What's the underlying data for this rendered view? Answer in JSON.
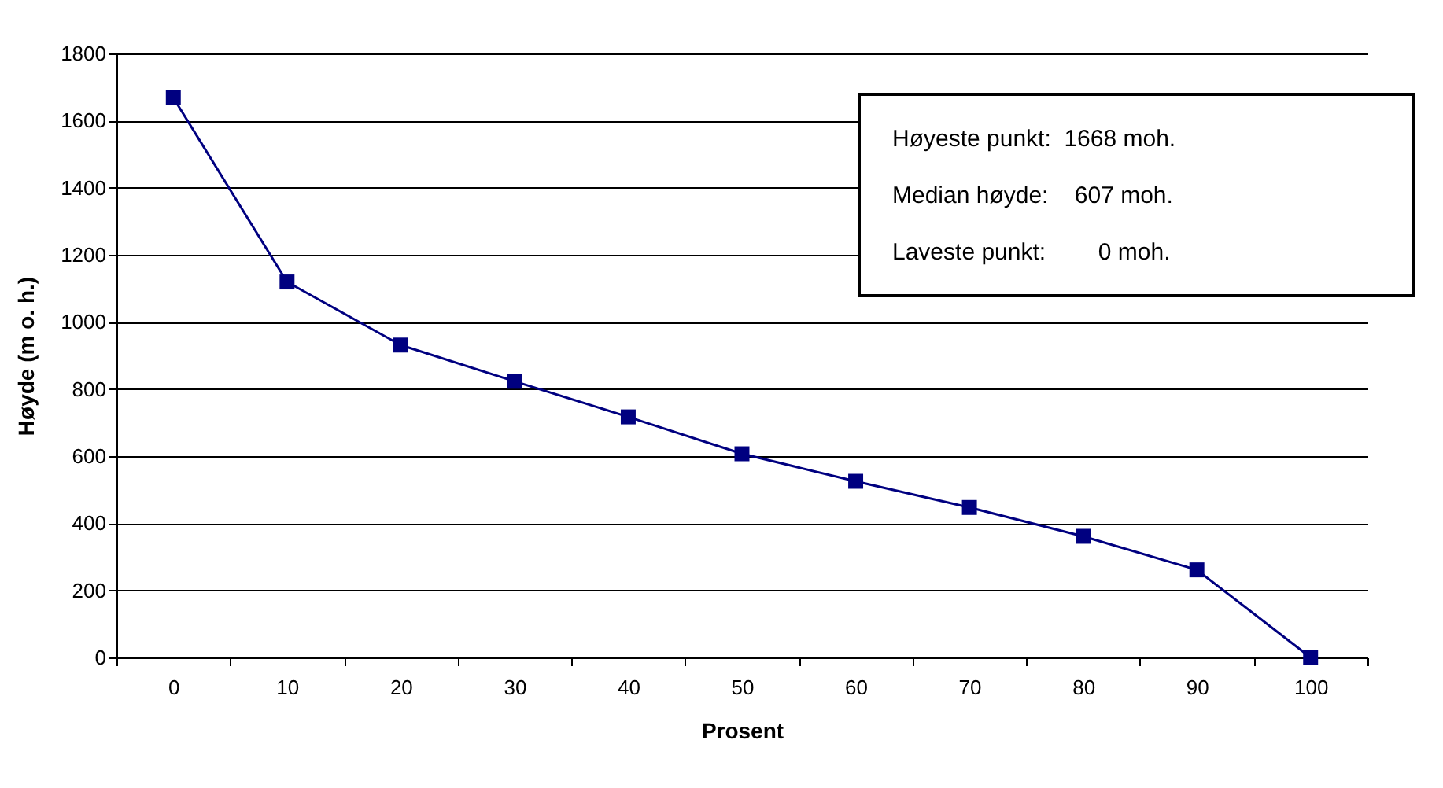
{
  "chart_data": {
    "type": "line",
    "xlabel": "Prosent",
    "ylabel": "Høyde (m o. h.)",
    "categories": [
      "0",
      "10",
      "20",
      "30",
      "40",
      "50",
      "60",
      "70",
      "80",
      "90",
      "100"
    ],
    "series": [
      {
        "color": "#000080",
        "values": [
          1668,
          1119,
          931,
          823,
          717,
          607,
          525,
          447,
          361,
          261,
          0
        ]
      }
    ],
    "ylim": [
      0,
      1800
    ],
    "yticks": [
      0,
      200,
      400,
      600,
      800,
      1000,
      1200,
      1400,
      1600,
      1800
    ],
    "grid": "y",
    "marker": "square",
    "line_style": "solid",
    "annotations": [
      "Høyeste punkt:  1668 moh.",
      "Median høyde:    607 moh.",
      "Laveste punkt:        0 moh."
    ]
  }
}
